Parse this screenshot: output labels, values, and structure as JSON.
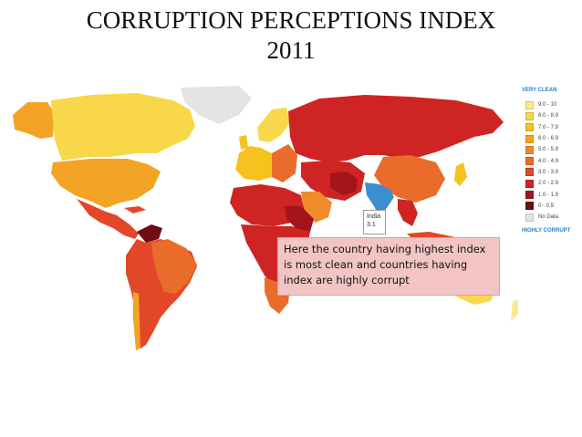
{
  "title": {
    "line1": "CORRUPTION PERCEPTIONS INDEX",
    "line2": "2011"
  },
  "legend": {
    "top_label": "VERY CLEAN",
    "bottom_label": "HIGHLY CORRUPT",
    "items": [
      {
        "label": "9.0 - 10",
        "color": "#fbe98e"
      },
      {
        "label": "8.0 - 8.9",
        "color": "#f8d84a"
      },
      {
        "label": "7.0 - 7.9",
        "color": "#f6c21e"
      },
      {
        "label": "6.0 - 6.9",
        "color": "#f3a424"
      },
      {
        "label": "5.0 - 5.9",
        "color": "#ef8b2a"
      },
      {
        "label": "4.0 - 4.9",
        "color": "#ea6c2b"
      },
      {
        "label": "3.0 - 3.9",
        "color": "#e2472a"
      },
      {
        "label": "2.0 - 2.9",
        "color": "#cf2424"
      },
      {
        "label": "1.0 - 1.9",
        "color": "#a3141c"
      },
      {
        "label": "0 - 0.9",
        "color": "#6e0c12"
      },
      {
        "label": "No Data",
        "color": "#e4e4e6"
      }
    ]
  },
  "callout": {
    "country": "India",
    "score": "3.1",
    "country_color": "#3a8fd0"
  },
  "note": "Here the country having highest index is most clean and countries having index are highly corrupt"
}
